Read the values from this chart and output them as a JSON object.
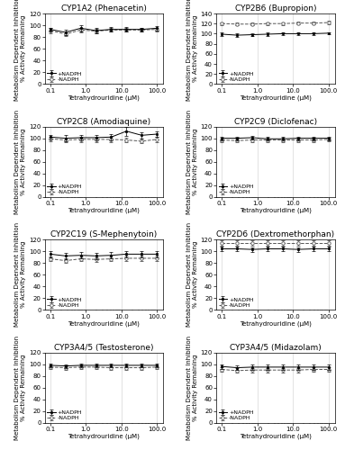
{
  "x": [
    0.1,
    0.268,
    0.72,
    1.93,
    5.18,
    13.9,
    37.3,
    100
  ],
  "panels": [
    {
      "title": "CYP1A2 (Phenacetin)",
      "ylim": [
        0,
        120
      ],
      "yticks": [
        0,
        20,
        40,
        60,
        80,
        100,
        120
      ],
      "plus_nadph": [
        93,
        88,
        95,
        91,
        93,
        93,
        93,
        95
      ],
      "minus_nadph": [
        91,
        85,
        92,
        90,
        92,
        92,
        92,
        93
      ],
      "plus_sd": [
        3,
        4,
        5,
        5,
        4,
        4,
        3,
        4
      ],
      "minus_sd": [
        4,
        4,
        4,
        4,
        3,
        3,
        3,
        3
      ]
    },
    {
      "title": "CYP2B6 (Bupropion)",
      "ylim": [
        0,
        140
      ],
      "yticks": [
        0,
        20,
        40,
        60,
        80,
        100,
        120,
        140
      ],
      "plus_nadph": [
        99,
        97,
        98,
        99,
        100,
        100,
        100,
        101
      ],
      "minus_nadph": [
        120,
        119,
        119,
        120,
        120,
        121,
        121,
        122
      ],
      "plus_sd": [
        3,
        3,
        3,
        3,
        2,
        2,
        2,
        2
      ],
      "minus_sd": [
        3,
        3,
        3,
        3,
        3,
        3,
        3,
        3
      ]
    },
    {
      "title": "CYP2C8 (Amodiaquine)",
      "ylim": [
        0,
        120
      ],
      "yticks": [
        0,
        20,
        40,
        60,
        80,
        100,
        120
      ],
      "plus_nadph": [
        102,
        100,
        101,
        101,
        102,
        112,
        105,
        107
      ],
      "minus_nadph": [
        99,
        97,
        98,
        98,
        98,
        97,
        95,
        98
      ],
      "plus_sd": [
        4,
        5,
        4,
        4,
        5,
        8,
        5,
        5
      ],
      "minus_sd": [
        4,
        4,
        4,
        4,
        4,
        4,
        4,
        4
      ]
    },
    {
      "title": "CYP2C9 (Diclofenac)",
      "ylim": [
        0,
        120
      ],
      "yticks": [
        0,
        20,
        40,
        60,
        80,
        100,
        120
      ],
      "plus_nadph": [
        100,
        100,
        101,
        99,
        99,
        100,
        100,
        100
      ],
      "minus_nadph": [
        97,
        96,
        97,
        97,
        97,
        97,
        97,
        98
      ],
      "plus_sd": [
        3,
        3,
        3,
        3,
        3,
        3,
        3,
        3
      ],
      "minus_sd": [
        3,
        3,
        3,
        3,
        3,
        3,
        3,
        3
      ]
    },
    {
      "title": "CYP2C19 (S-Mephenytoin)",
      "ylim": [
        0,
        120
      ],
      "yticks": [
        0,
        20,
        40,
        60,
        80,
        100,
        120
      ],
      "plus_nadph": [
        95,
        92,
        93,
        92,
        93,
        95,
        95,
        95
      ],
      "minus_nadph": [
        87,
        84,
        87,
        86,
        87,
        88,
        88,
        88
      ],
      "plus_sd": [
        5,
        5,
        5,
        5,
        5,
        5,
        5,
        5
      ],
      "minus_sd": [
        4,
        4,
        4,
        4,
        4,
        4,
        4,
        4
      ]
    },
    {
      "title": "CYP2D6 (Dextromethorphan)",
      "ylim": [
        0,
        120
      ],
      "yticks": [
        0,
        20,
        40,
        60,
        80,
        100,
        120
      ],
      "plus_nadph": [
        104,
        104,
        103,
        104,
        104,
        103,
        104,
        104
      ],
      "minus_nadph": [
        114,
        114,
        114,
        114,
        114,
        114,
        114,
        114
      ],
      "plus_sd": [
        4,
        4,
        4,
        4,
        4,
        4,
        4,
        4
      ],
      "minus_sd": [
        4,
        4,
        4,
        4,
        4,
        4,
        4,
        4
      ]
    },
    {
      "title": "CYP3A4/5 (Testosterone)",
      "ylim": [
        0,
        120
      ],
      "yticks": [
        0,
        20,
        40,
        60,
        80,
        100,
        120
      ],
      "plus_nadph": [
        98,
        97,
        98,
        98,
        98,
        98,
        98,
        98
      ],
      "minus_nadph": [
        95,
        94,
        95,
        95,
        94,
        94,
        94,
        95
      ],
      "plus_sd": [
        3,
        3,
        3,
        3,
        3,
        3,
        3,
        3
      ],
      "minus_sd": [
        3,
        3,
        3,
        3,
        3,
        3,
        3,
        3
      ]
    },
    {
      "title": "CYP3A4/5 (Midazolam)",
      "ylim": [
        0,
        120
      ],
      "yticks": [
        0,
        20,
        40,
        60,
        80,
        100,
        120
      ],
      "plus_nadph": [
        96,
        94,
        95,
        95,
        95,
        95,
        95,
        95
      ],
      "minus_nadph": [
        91,
        89,
        90,
        90,
        90,
        90,
        91,
        91
      ],
      "plus_sd": [
        4,
        4,
        4,
        4,
        4,
        4,
        4,
        4
      ],
      "minus_sd": [
        4,
        4,
        4,
        4,
        4,
        4,
        4,
        4
      ]
    }
  ],
  "ylabel_line1": "Metabolism Dependent Inhibition",
  "ylabel_line2": "% Activity Remaining",
  "xlabel": "Tetrahydrouridine (μM)",
  "legend_plus": "+NADPH",
  "legend_minus": "-NADPH",
  "plus_color": "#000000",
  "minus_color": "#555555",
  "plus_marker": "s",
  "minus_marker": "o",
  "plus_linestyle": "-",
  "minus_linestyle": "--",
  "grid_color": "#cccccc",
  "title_fontsize": 6.5,
  "label_fontsize": 5,
  "tick_fontsize": 5,
  "legend_fontsize": 4.5
}
